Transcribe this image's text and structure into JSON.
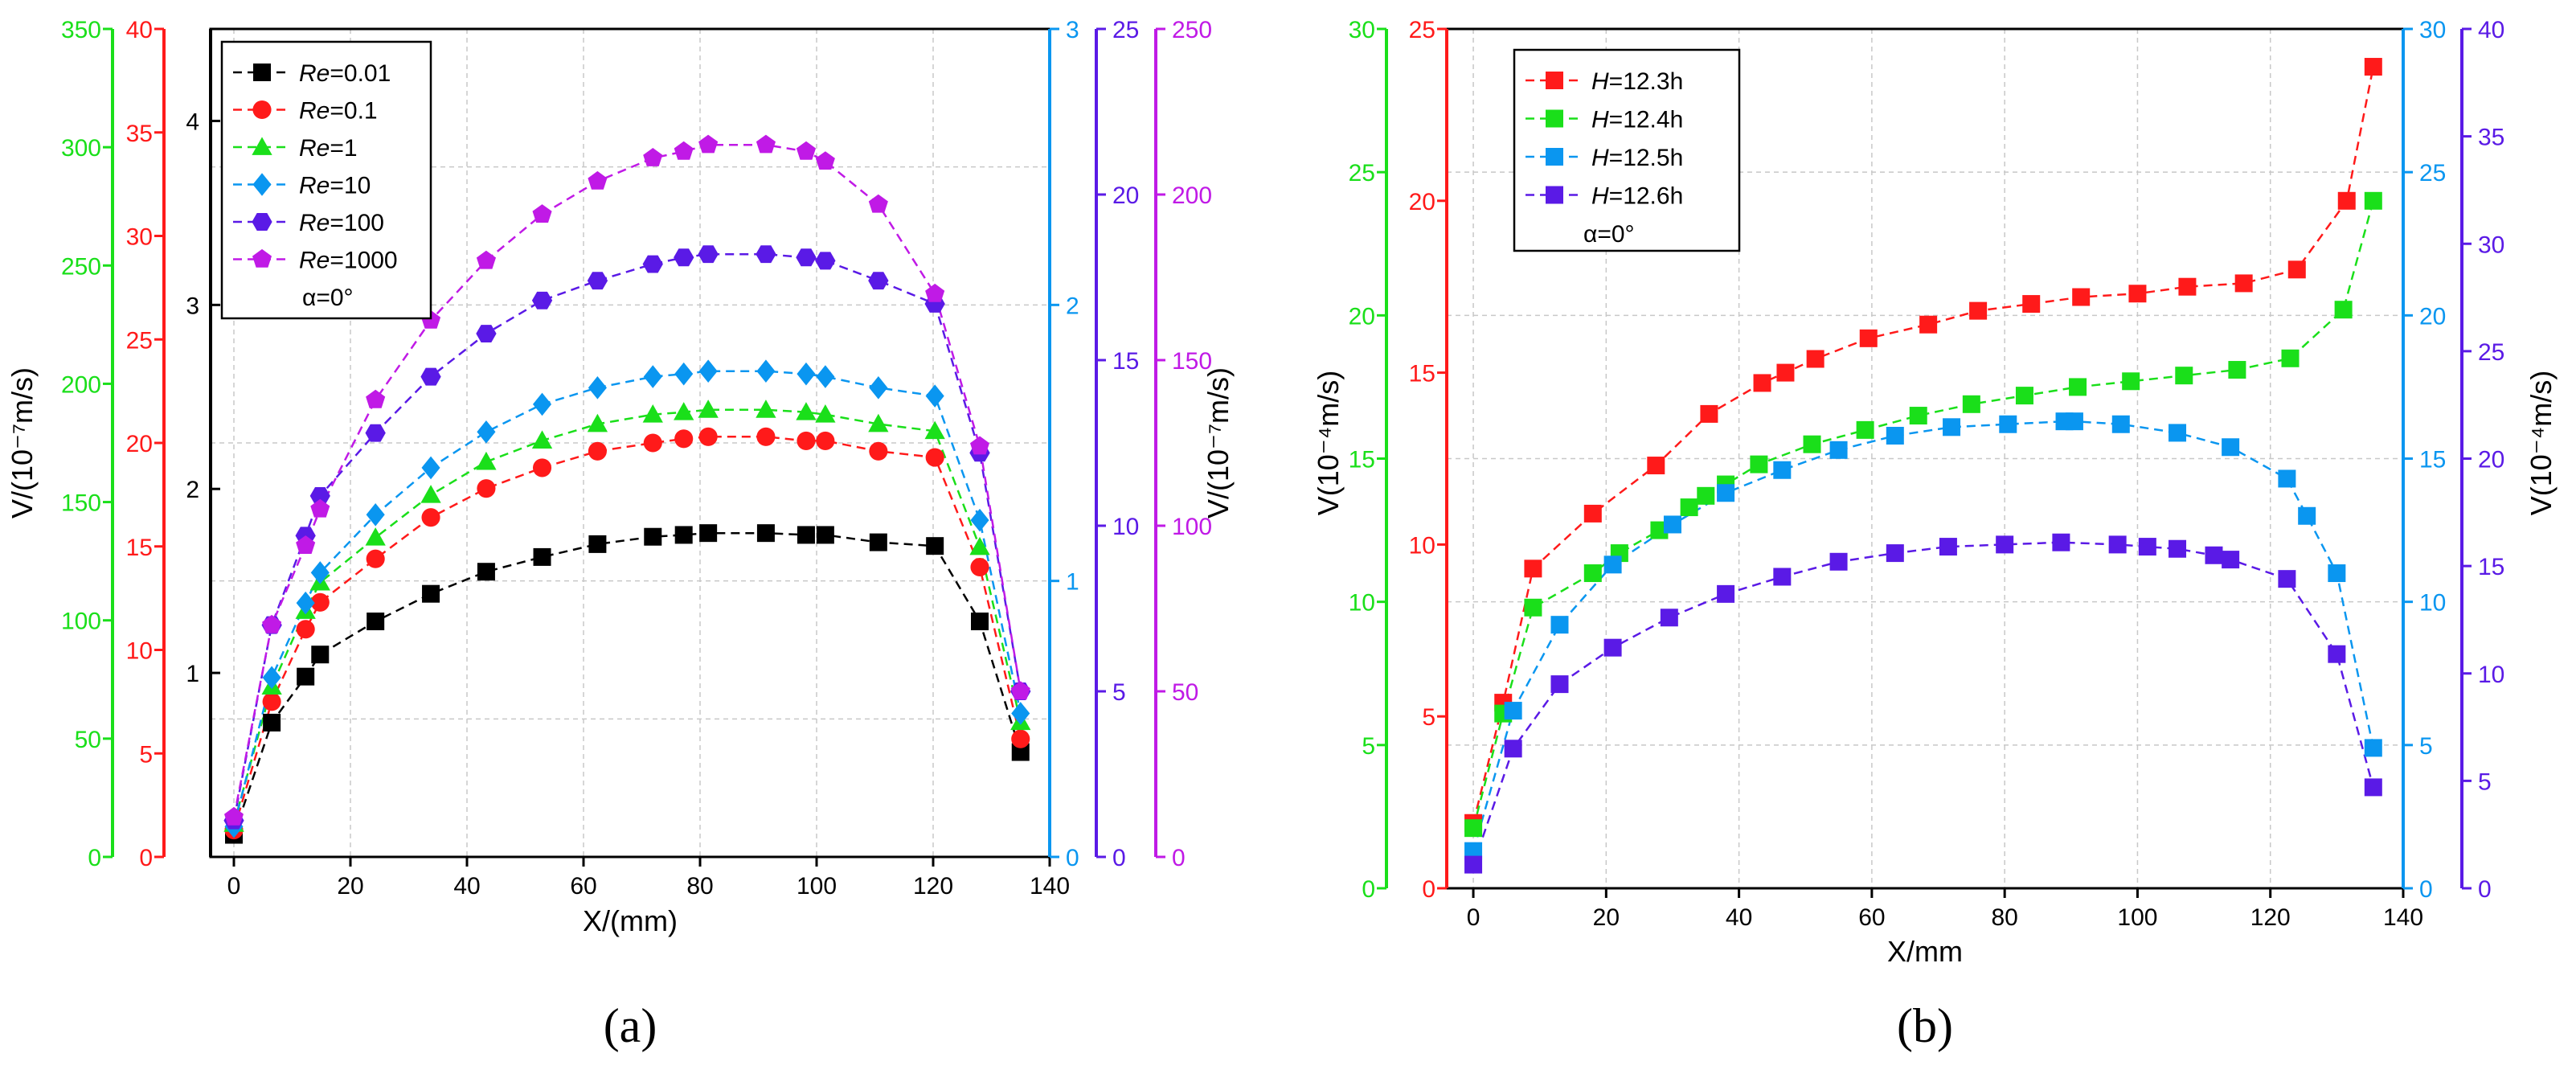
{
  "colors": {
    "black": "#000000",
    "red": "#ff1a1a",
    "green": "#1adf1a",
    "blue": "#0a96f0",
    "indigo": "#5a1ae6",
    "purple": "#c01ae6",
    "grid": "#c8c8c8"
  },
  "chart_data": [
    {
      "type": "line",
      "panel_label": "(a)",
      "xlabel": "X/(mm)",
      "ylabel_left": "V/(10⁻⁷m/s)",
      "ylabel_right": "V/(10⁻⁷m/s)",
      "xlim": [
        -4,
        140
      ],
      "xticks": [
        0,
        20,
        40,
        60,
        80,
        100,
        120,
        140
      ],
      "grid": true,
      "legend_position": "top-left",
      "annotation": "α=0°",
      "axes": [
        {
          "id": "black",
          "side": "inner-left",
          "color": "black",
          "lim": [
            0,
            4.5
          ],
          "ticks": [
            1,
            2,
            3,
            4
          ]
        },
        {
          "id": "red",
          "side": "left-2",
          "color": "red",
          "lim": [
            0,
            40
          ],
          "ticks": [
            0,
            5,
            10,
            15,
            20,
            25,
            30,
            35,
            40
          ]
        },
        {
          "id": "green",
          "side": "left-1",
          "color": "green",
          "lim": [
            0,
            350
          ],
          "ticks": [
            0,
            50,
            100,
            150,
            200,
            250,
            300,
            350
          ]
        },
        {
          "id": "blue",
          "side": "right-1",
          "color": "blue",
          "lim": [
            0,
            3
          ],
          "ticks": [
            0,
            1,
            2,
            3
          ]
        },
        {
          "id": "indigo",
          "side": "right-2",
          "color": "indigo",
          "lim": [
            0,
            25
          ],
          "ticks": [
            0,
            5,
            10,
            15,
            20,
            25
          ]
        },
        {
          "id": "purple",
          "side": "right-3",
          "color": "purple",
          "lim": [
            0,
            250
          ],
          "ticks": [
            0,
            50,
            100,
            150,
            200,
            250
          ]
        }
      ],
      "x": [
        0,
        6.5,
        12.3,
        14.8,
        24.3,
        33.8,
        43.3,
        52.9,
        62.4,
        71.9,
        77.2,
        81.4,
        91.3,
        98.2,
        101.5,
        110.6,
        120.3,
        128.0,
        135.0
      ],
      "series": [
        {
          "legend_prefix": "Re",
          "legend_value": "=0.01",
          "color": "black",
          "marker": "square",
          "axis": "black",
          "values": [
            0.12,
            0.73,
            0.98,
            1.1,
            1.28,
            1.43,
            1.55,
            1.63,
            1.7,
            1.74,
            1.75,
            1.76,
            1.76,
            1.75,
            1.75,
            1.71,
            1.69,
            1.28,
            0.57
          ]
        },
        {
          "legend_prefix": "Re",
          "legend_value": "=0.1",
          "color": "red",
          "marker": "circle",
          "axis": "red",
          "values": [
            1.3,
            7.5,
            11.0,
            12.3,
            14.4,
            16.4,
            17.8,
            18.8,
            19.6,
            20.0,
            20.2,
            20.3,
            20.3,
            20.1,
            20.1,
            19.6,
            19.3,
            14.0,
            5.7
          ]
        },
        {
          "legend_prefix": "Re",
          "legend_value": "=1",
          "color": "green",
          "marker": "triangle",
          "axis": "green",
          "values": [
            14,
            72,
            104,
            116,
            135,
            153,
            167,
            176,
            183,
            187,
            188,
            189,
            189,
            188,
            187,
            183,
            180,
            131,
            57
          ]
        },
        {
          "legend_prefix": "Re",
          "legend_value": "=10",
          "color": "blue",
          "marker": "diamond",
          "axis": "blue",
          "values": [
            0.11,
            0.65,
            0.92,
            1.03,
            1.24,
            1.41,
            1.54,
            1.64,
            1.7,
            1.74,
            1.75,
            1.76,
            1.76,
            1.75,
            1.74,
            1.7,
            1.67,
            1.22,
            0.52
          ]
        },
        {
          "legend_prefix": "Re",
          "legend_value": "=100",
          "color": "indigo",
          "marker": "hexagon",
          "axis": "indigo",
          "values": [
            1.1,
            7.0,
            9.7,
            10.9,
            12.8,
            14.5,
            15.8,
            16.8,
            17.4,
            17.9,
            18.1,
            18.2,
            18.2,
            18.1,
            18.0,
            17.4,
            16.7,
            12.2,
            5.0
          ]
        },
        {
          "legend_prefix": "Re",
          "legend_value": "=1000",
          "color": "purple",
          "marker": "pentagon",
          "axis": "purple",
          "values": [
            12,
            70,
            94,
            105,
            138,
            162,
            180,
            194,
            204,
            211,
            213,
            215,
            215,
            213,
            210,
            197,
            170,
            124,
            50
          ]
        }
      ]
    },
    {
      "type": "line",
      "panel_label": "(b)",
      "xlabel": "X/mm",
      "ylabel_left": "V(10⁻⁴m/s)",
      "ylabel_right": "V(10⁻⁴m/s)",
      "xlim": [
        -4,
        140
      ],
      "xticks": [
        0,
        20,
        40,
        60,
        80,
        100,
        120,
        140
      ],
      "grid": true,
      "legend_position": "top-left",
      "annotation": "α=0°",
      "axes": [
        {
          "id": "green",
          "side": "left-1",
          "color": "green",
          "lim": [
            0,
            30
          ],
          "ticks": [
            0,
            5,
            10,
            15,
            20,
            25,
            30
          ]
        },
        {
          "id": "red",
          "side": "left-2",
          "color": "red",
          "lim": [
            0,
            25
          ],
          "ticks": [
            0,
            5,
            10,
            15,
            20,
            25
          ]
        },
        {
          "id": "blue",
          "side": "right-1",
          "color": "blue",
          "lim": [
            0,
            30
          ],
          "ticks": [
            0,
            5,
            10,
            15,
            20,
            25,
            30
          ]
        },
        {
          "id": "indigo",
          "side": "right-2",
          "color": "indigo",
          "lim": [
            0,
            40
          ],
          "ticks": [
            0,
            5,
            10,
            15,
            20,
            25,
            30,
            35,
            40
          ]
        }
      ],
      "series": [
        {
          "legend_prefix": "H",
          "legend_value": "=12.3h",
          "color": "red",
          "marker": "square",
          "axis": "red",
          "x": [
            0,
            4.5,
            9.0,
            18.0,
            27.5,
            35.5,
            43.5,
            47.0,
            51.5,
            59.5,
            68.5,
            76.0,
            84.0,
            91.5,
            100.0,
            107.5,
            116.0,
            124.0,
            131.5,
            135.5
          ],
          "values": [
            1.9,
            5.4,
            9.3,
            10.9,
            12.3,
            13.8,
            14.7,
            15.0,
            15.4,
            16.0,
            16.4,
            16.8,
            17.0,
            17.2,
            17.3,
            17.5,
            17.6,
            18.0,
            20.0,
            23.9
          ]
        },
        {
          "legend_prefix": "H",
          "legend_value": "=12.4h",
          "color": "green",
          "marker": "square",
          "axis": "green",
          "x": [
            0,
            4.5,
            9.0,
            18.0,
            22.0,
            28.0,
            32.5,
            35.0,
            38.0,
            43.0,
            51.0,
            59.0,
            67.0,
            75.0,
            83.0,
            91.0,
            99.0,
            107.0,
            115.0,
            123.0,
            131.0,
            135.5
          ],
          "values": [
            2.1,
            6.1,
            9.8,
            11.0,
            11.7,
            12.5,
            13.3,
            13.7,
            14.1,
            14.8,
            15.5,
            16.0,
            16.5,
            16.9,
            17.2,
            17.5,
            17.7,
            17.9,
            18.1,
            18.5,
            20.2,
            24.0
          ]
        },
        {
          "legend_prefix": "H",
          "legend_value": "=12.5h",
          "color": "blue",
          "marker": "square",
          "axis": "blue",
          "x": [
            0,
            6.0,
            13.0,
            21.0,
            30.0,
            38.0,
            46.5,
            55.0,
            63.5,
            72.0,
            80.5,
            89.0,
            90.5,
            97.5,
            106.0,
            114.0,
            122.5,
            125.5,
            130.0,
            135.5
          ],
          "values": [
            1.3,
            6.2,
            9.2,
            11.3,
            12.7,
            13.8,
            14.6,
            15.3,
            15.8,
            16.1,
            16.2,
            16.3,
            16.3,
            16.2,
            15.9,
            15.4,
            14.3,
            13.0,
            11.0,
            4.9
          ]
        },
        {
          "legend_prefix": "H",
          "legend_value": "=12.6h",
          "color": "indigo",
          "marker": "square",
          "axis": "indigo",
          "x": [
            0,
            6.0,
            13.0,
            21.0,
            29.5,
            38.0,
            46.5,
            55.0,
            63.5,
            71.5,
            80.0,
            88.5,
            97.0,
            101.5,
            106.0,
            111.5,
            114.0,
            122.5,
            130.0,
            135.5
          ],
          "values": [
            1.1,
            6.5,
            9.5,
            11.2,
            12.6,
            13.7,
            14.5,
            15.2,
            15.6,
            15.9,
            16.0,
            16.1,
            16.0,
            15.9,
            15.8,
            15.5,
            15.3,
            14.4,
            10.9,
            4.7
          ]
        }
      ]
    }
  ]
}
